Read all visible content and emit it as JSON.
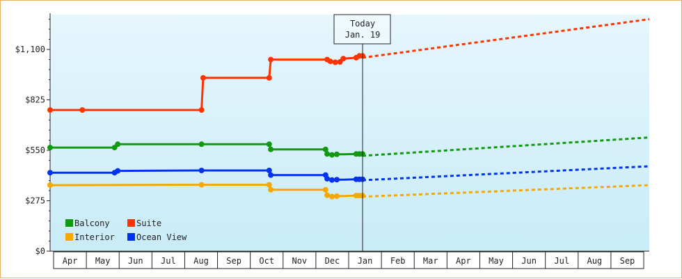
{
  "chart_data": {
    "type": "line",
    "title": "",
    "xlabel": "",
    "ylabel": "",
    "y_ticks": [
      "$0",
      "$275",
      "$550",
      "$825",
      "$1,100"
    ],
    "y_tick_values": [
      0,
      275,
      550,
      825,
      1100
    ],
    "ylim": [
      0,
      1290
    ],
    "x_ticks": [
      "Apr",
      "May",
      "Jun",
      "Jul",
      "Aug",
      "Sep",
      "Oct",
      "Nov",
      "Dec",
      "Jan",
      "Feb",
      "Mar",
      "Apr",
      "May",
      "Jun",
      "Jul",
      "Aug",
      "Sep"
    ],
    "x_unit": "months (0 = start of Apr)",
    "xlim": [
      -0.1,
      18.5
    ],
    "today": {
      "line1": "Today",
      "line2": "Jan. 19",
      "x": 9.6
    },
    "legend_position": "bottom-left",
    "grid": false,
    "background": [
      "#e6f6fc",
      "#c9ecf8"
    ],
    "series": [
      {
        "name": "Suite",
        "color": "#ff3300",
        "actual": [
          [
            -0.1,
            770
          ],
          [
            0.9,
            770
          ],
          [
            4.6,
            770
          ],
          [
            4.65,
            945
          ],
          [
            6.7,
            945
          ],
          [
            6.75,
            1045
          ],
          [
            8.5,
            1045
          ],
          [
            8.6,
            1035
          ],
          [
            8.75,
            1030
          ],
          [
            8.9,
            1032
          ],
          [
            9.0,
            1050
          ],
          [
            9.4,
            1055
          ],
          [
            9.5,
            1065
          ],
          [
            9.6,
            1065
          ]
        ],
        "markers": [
          [
            -0.1,
            770
          ],
          [
            0.9,
            770
          ],
          [
            4.6,
            770
          ],
          [
            4.65,
            945
          ],
          [
            6.7,
            945
          ],
          [
            6.75,
            1045
          ],
          [
            8.5,
            1045
          ],
          [
            8.6,
            1035
          ],
          [
            8.75,
            1030
          ],
          [
            8.9,
            1032
          ],
          [
            9.0,
            1050
          ],
          [
            9.4,
            1055
          ],
          [
            9.5,
            1065
          ],
          [
            9.6,
            1065
          ]
        ],
        "forecast": [
          [
            9.6,
            1055
          ],
          [
            18.5,
            1265
          ]
        ]
      },
      {
        "name": "Balcony",
        "color": "#119911",
        "actual": [
          [
            -0.1,
            565
          ],
          [
            1.9,
            565
          ],
          [
            2.0,
            583
          ],
          [
            4.6,
            583
          ],
          [
            6.7,
            583
          ],
          [
            6.75,
            555
          ],
          [
            8.45,
            555
          ],
          [
            8.5,
            530
          ],
          [
            8.65,
            525
          ],
          [
            8.8,
            528
          ],
          [
            9.0,
            528
          ],
          [
            9.4,
            530
          ],
          [
            9.6,
            530
          ]
        ],
        "markers": [
          [
            -0.1,
            565
          ],
          [
            1.9,
            565
          ],
          [
            2.0,
            583
          ],
          [
            4.6,
            583
          ],
          [
            6.7,
            583
          ],
          [
            6.75,
            555
          ],
          [
            8.45,
            555
          ],
          [
            8.5,
            530
          ],
          [
            8.65,
            525
          ],
          [
            8.8,
            528
          ],
          [
            9.4,
            530
          ],
          [
            9.5,
            530
          ],
          [
            9.6,
            530
          ]
        ],
        "forecast": [
          [
            9.6,
            520
          ],
          [
            18.5,
            620
          ]
        ]
      },
      {
        "name": "Ocean View",
        "color": "#0033ee",
        "actual": [
          [
            -0.1,
            428
          ],
          [
            1.9,
            428
          ],
          [
            2.0,
            438
          ],
          [
            4.6,
            440
          ],
          [
            6.7,
            440
          ],
          [
            6.75,
            415
          ],
          [
            8.45,
            415
          ],
          [
            8.5,
            395
          ],
          [
            8.65,
            388
          ],
          [
            8.8,
            390
          ],
          [
            9.0,
            390
          ],
          [
            9.4,
            392
          ],
          [
            9.6,
            392
          ]
        ],
        "markers": [
          [
            -0.1,
            428
          ],
          [
            1.9,
            428
          ],
          [
            2.0,
            438
          ],
          [
            4.6,
            440
          ],
          [
            6.7,
            440
          ],
          [
            6.75,
            415
          ],
          [
            8.45,
            415
          ],
          [
            8.5,
            395
          ],
          [
            8.65,
            388
          ],
          [
            8.8,
            390
          ],
          [
            9.4,
            392
          ],
          [
            9.5,
            392
          ],
          [
            9.6,
            392
          ]
        ],
        "forecast": [
          [
            9.6,
            387
          ],
          [
            18.5,
            463
          ]
        ]
      },
      {
        "name": "Interior",
        "color": "#f5a800",
        "actual": [
          [
            -0.1,
            360
          ],
          [
            4.6,
            362
          ],
          [
            6.7,
            362
          ],
          [
            6.75,
            335
          ],
          [
            8.45,
            335
          ],
          [
            8.5,
            305
          ],
          [
            8.65,
            298
          ],
          [
            8.8,
            300
          ],
          [
            9.0,
            300
          ],
          [
            9.4,
            303
          ],
          [
            9.6,
            303
          ]
        ],
        "markers": [
          [
            -0.1,
            360
          ],
          [
            4.6,
            362
          ],
          [
            6.7,
            362
          ],
          [
            6.75,
            335
          ],
          [
            8.45,
            335
          ],
          [
            8.5,
            305
          ],
          [
            8.65,
            298
          ],
          [
            8.8,
            300
          ],
          [
            9.4,
            303
          ],
          [
            9.5,
            303
          ],
          [
            9.6,
            303
          ]
        ],
        "forecast": [
          [
            9.6,
            297
          ],
          [
            18.5,
            360
          ]
        ]
      }
    ],
    "legend": [
      {
        "name": "Balcony",
        "color": "#119911"
      },
      {
        "name": "Suite",
        "color": "#ff3300"
      },
      {
        "name": "Interior",
        "color": "#f5a800"
      },
      {
        "name": "Ocean View",
        "color": "#0033ee"
      }
    ]
  }
}
